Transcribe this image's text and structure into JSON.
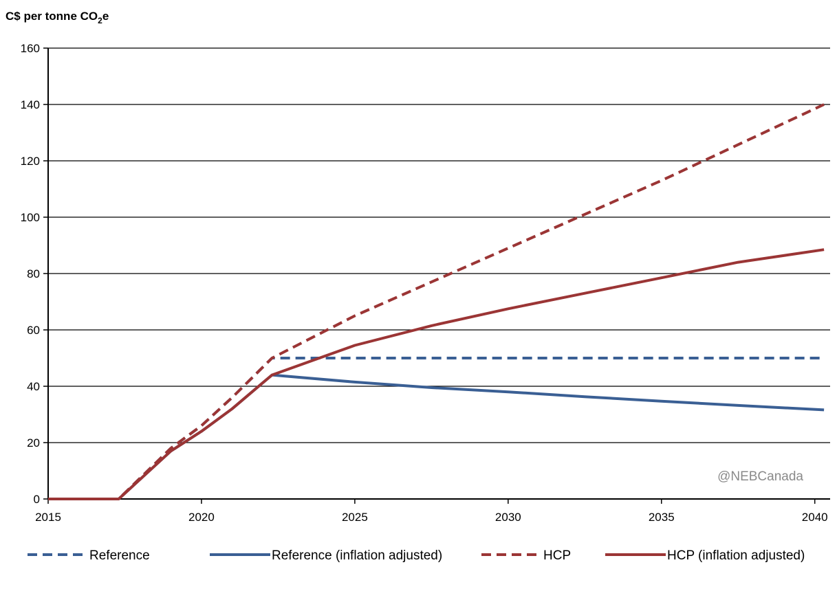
{
  "chart_data": {
    "type": "line",
    "ylabel": {
      "main": "C$ per tonne CO",
      "sub": "2",
      "tail": "e"
    },
    "xlabel": "",
    "xlim": [
      2015,
      2040.5
    ],
    "ylim": [
      0,
      160
    ],
    "x_ticks": [
      2015,
      2020,
      2025,
      2030,
      2035,
      2040
    ],
    "y_ticks": [
      0,
      20,
      40,
      60,
      80,
      100,
      120,
      140,
      160
    ],
    "grid": "horizontal",
    "legend_position": "bottom",
    "watermark": "@NEBCanada",
    "series": [
      {
        "name": "Reference",
        "color": "#3a5f94",
        "style": "dashed",
        "x": [
          2015,
          2017.3,
          2019,
          2020,
          2021,
          2022.3,
          2025,
          2030,
          2035,
          2040.3
        ],
        "values": [
          0,
          0,
          18,
          26,
          36,
          50,
          50,
          50,
          50,
          50
        ]
      },
      {
        "name": "Reference (inflation adjusted)",
        "color": "#3a5f94",
        "style": "solid",
        "x": [
          2015,
          2017.3,
          2019,
          2020,
          2021,
          2022.3,
          2025,
          2027.5,
          2030,
          2032.5,
          2035,
          2037.5,
          2040.3
        ],
        "values": [
          0,
          0,
          17,
          24,
          32,
          44,
          41.5,
          39.5,
          38,
          36.3,
          34.7,
          33.2,
          31.6
        ]
      },
      {
        "name": "HCP",
        "color": "#9b3535",
        "style": "dashed",
        "x": [
          2015,
          2017.3,
          2019,
          2020,
          2021,
          2022.3,
          2025,
          2030,
          2035,
          2040.3
        ],
        "values": [
          0,
          0,
          18,
          26,
          36,
          50,
          65,
          89,
          113,
          140
        ]
      },
      {
        "name": "HCP (inflation adjusted)",
        "color": "#9b3535",
        "style": "solid",
        "x": [
          2015,
          2017.3,
          2019,
          2020,
          2021,
          2022.3,
          2025,
          2027.5,
          2030,
          2032.5,
          2035,
          2037.5,
          2040.3
        ],
        "values": [
          0,
          0,
          17,
          24,
          32,
          44,
          54.5,
          61.5,
          67.5,
          73,
          78.5,
          84,
          88.5
        ]
      }
    ]
  }
}
